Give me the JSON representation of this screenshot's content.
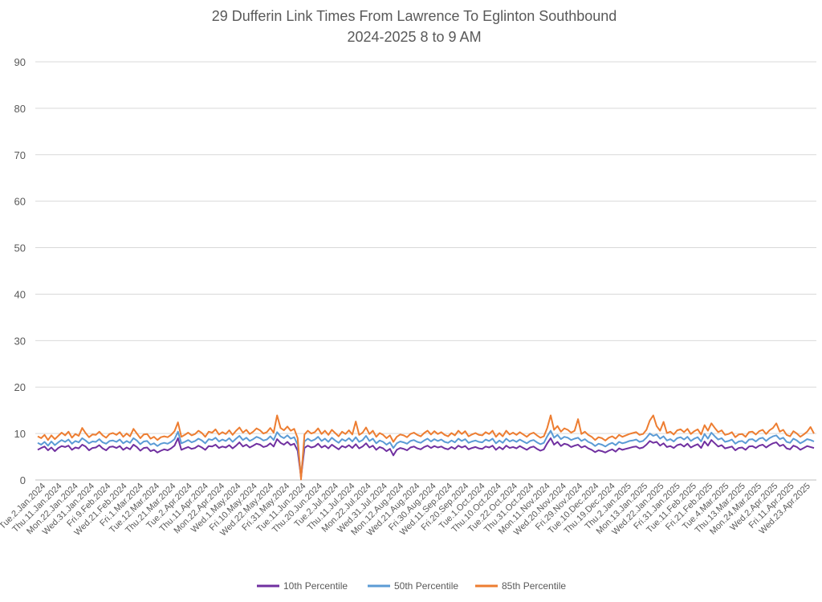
{
  "chart_data": {
    "type": "line",
    "title": "29 Dufferin Link Times From Lawrence To Eglinton Southbound",
    "subtitle": "2024-2025 8 to 9 AM",
    "xlabel": "",
    "ylabel": "",
    "ylim": [
      0,
      90
    ],
    "yticks": [
      0,
      10,
      20,
      30,
      40,
      50,
      60,
      70,
      80,
      90
    ],
    "grid": true,
    "legend_position": "bottom",
    "x_tick_labels": [
      "Tue.2.Jan.2024",
      "Thu.11.Jan.2024",
      "Mon.22.Jan.2024",
      "Wed.31.Jan.2024",
      "Fri.9.Feb.2024",
      "Wed.21.Feb.2024",
      "Fri.1.Mar.2024",
      "Tue.12.Mar.2024",
      "Thu.21.Mar.2024",
      "Tue.2.Apr.2024",
      "Thu.11.Apr.2024",
      "Mon.22.Apr.2024",
      "Wed.1.May.2024",
      "Fri.10.May.2024",
      "Wed.22.May.2024",
      "Fri.31.May.2024",
      "Tue.11.Jun.2024",
      "Thu.20.Jun.2024",
      "Tue.2.Jul.2024",
      "Thu.11.Jul.2024",
      "Mon.22.Jul.2024",
      "Wed.31.Jul.2024",
      "Mon.12.Aug.2024",
      "Wed.21.Aug.2024",
      "Fri.30.Aug.2024",
      "Wed.11.Sep.2024",
      "Fri.20.Sep.2024",
      "Tue.1.Oct.2024",
      "Thu.10.Oct.2024",
      "Tue.22.Oct.2024",
      "Thu.31.Oct.2024",
      "Mon.11.Nov.2024",
      "Wed.20.Nov.2024",
      "Fri.29.Nov.2024",
      "Tue.10.Dec.2024",
      "Thu.19.Dec.2024",
      "Thu.2.Jan.2025",
      "Mon.13.Jan.2025",
      "Wed.22.Jan.2025",
      "Fri.31.Jan.2025",
      "Tue.11.Feb.2025",
      "Fri.21.Feb.2025",
      "Tue.4.Mar.2025",
      "Thu.13.Mar.2025",
      "Mon.24.Mar.2025",
      "Wed.2.Apr.2025",
      "Fri.11.Apr.2025",
      "Wed.23.Apr.2025"
    ],
    "series": [
      {
        "name": "10th Percentile",
        "color": "#7030a0",
        "values": [
          6.5,
          6.9,
          7.2,
          6.4,
          7.0,
          6.2,
          6.9,
          7.3,
          7.1,
          7.4,
          6.5,
          7.0,
          6.8,
          7.6,
          7.2,
          6.4,
          6.9,
          7.0,
          7.5,
          6.8,
          6.4,
          7.1,
          7.2,
          6.9,
          7.3,
          6.5,
          7.0,
          6.6,
          7.6,
          7.1,
          6.3,
          6.9,
          7.0,
          6.2,
          6.5,
          5.9,
          6.3,
          6.6,
          6.4,
          6.8,
          7.4,
          9.0,
          6.5,
          6.8,
          7.1,
          6.7,
          6.9,
          7.4,
          7.0,
          6.5,
          7.3,
          7.2,
          7.6,
          6.9,
          7.2,
          7.0,
          7.5,
          6.8,
          7.4,
          8.1,
          7.2,
          7.6,
          7.0,
          7.4,
          7.8,
          7.6,
          7.1,
          7.3,
          7.9,
          7.2,
          8.8,
          8.0,
          7.6,
          8.2,
          7.5,
          7.8,
          6.3,
          0.6,
          6.9,
          7.4,
          7.0,
          7.2,
          7.8,
          7.0,
          7.4,
          6.8,
          7.6,
          7.1,
          6.6,
          7.3,
          7.0,
          7.5,
          6.9,
          7.7,
          6.8,
          7.2,
          7.9,
          7.0,
          7.4,
          6.5,
          7.1,
          6.8,
          6.2,
          6.7,
          5.3,
          6.5,
          6.9,
          6.7,
          6.4,
          7.0,
          7.2,
          6.8,
          6.6,
          7.1,
          7.4,
          6.9,
          7.3,
          7.0,
          7.2,
          6.8,
          6.6,
          7.1,
          6.7,
          7.4,
          7.0,
          7.3,
          6.6,
          6.9,
          7.1,
          6.8,
          6.7,
          7.2,
          7.0,
          7.4,
          6.5,
          7.1,
          6.6,
          7.4,
          6.9,
          7.1,
          6.8,
          7.3,
          6.9,
          6.5,
          7.0,
          7.2,
          6.7,
          6.3,
          6.6,
          7.9,
          9.0,
          7.6,
          8.2,
          7.3,
          7.8,
          7.6,
          7.1,
          7.4,
          7.6,
          7.0,
          7.3,
          6.8,
          6.5,
          6.0,
          6.4,
          6.2,
          5.9,
          6.3,
          6.6,
          6.1,
          6.8,
          6.5,
          6.7,
          6.9,
          7.1,
          7.2,
          6.8,
          7.0,
          7.6,
          8.4,
          8.0,
          8.2,
          7.4,
          7.9,
          7.1,
          7.3,
          6.9,
          7.5,
          7.7,
          7.2,
          7.8,
          7.0,
          7.4,
          7.7,
          6.9,
          8.3,
          7.4,
          8.6,
          7.9,
          7.2,
          7.5,
          6.8,
          7.0,
          7.2,
          6.4,
          6.9,
          7.0,
          6.5,
          7.2,
          7.3,
          6.9,
          7.4,
          7.6,
          7.0,
          7.5,
          7.9,
          8.1,
          7.3,
          7.6,
          6.8,
          6.6,
          7.4,
          7.1,
          6.5,
          6.9,
          7.3,
          7.1,
          6.9
        ]
      },
      {
        "name": "50th Percentile",
        "color": "#5b9bd5",
        "values": [
          8.0,
          7.6,
          8.2,
          7.4,
          8.3,
          7.5,
          8.1,
          8.6,
          8.2,
          8.7,
          7.8,
          8.4,
          8.1,
          9.0,
          8.5,
          7.9,
          8.3,
          8.2,
          8.8,
          8.1,
          7.8,
          8.4,
          8.5,
          8.2,
          8.7,
          7.9,
          8.4,
          8.0,
          9.0,
          8.5,
          7.7,
          8.3,
          8.4,
          7.6,
          7.9,
          7.3,
          7.8,
          8.0,
          7.8,
          8.2,
          8.8,
          10.4,
          7.9,
          8.2,
          8.6,
          8.1,
          8.4,
          8.9,
          8.5,
          7.9,
          8.8,
          8.6,
          9.1,
          8.3,
          8.7,
          8.4,
          9.0,
          8.2,
          8.9,
          9.5,
          8.6,
          9.1,
          8.4,
          8.8,
          9.3,
          9.0,
          8.5,
          8.7,
          9.4,
          8.6,
          10.3,
          9.4,
          9.0,
          9.6,
          8.9,
          9.2,
          7.6,
          0.8,
          8.3,
          8.9,
          8.4,
          8.7,
          9.3,
          8.4,
          8.9,
          8.2,
          9.1,
          8.5,
          8.0,
          8.8,
          8.4,
          9.0,
          8.3,
          9.2,
          8.2,
          8.6,
          9.5,
          8.4,
          8.9,
          7.9,
          8.5,
          8.2,
          7.6,
          8.1,
          6.9,
          7.9,
          8.3,
          8.1,
          7.8,
          8.4,
          8.6,
          8.2,
          8.0,
          8.5,
          8.9,
          8.3,
          8.8,
          8.4,
          8.7,
          8.2,
          8.0,
          8.5,
          8.1,
          8.9,
          8.4,
          8.8,
          8.0,
          8.3,
          8.5,
          8.2,
          8.1,
          8.7,
          8.4,
          8.9,
          7.9,
          8.5,
          8.0,
          8.9,
          8.3,
          8.6,
          8.2,
          8.7,
          8.3,
          7.9,
          8.4,
          8.6,
          8.1,
          7.7,
          8.0,
          9.4,
          10.6,
          9.1,
          9.7,
          8.8,
          9.3,
          9.1,
          8.6,
          8.9,
          9.1,
          8.4,
          8.8,
          8.2,
          7.9,
          7.3,
          7.8,
          7.6,
          7.2,
          7.7,
          8.0,
          7.5,
          8.2,
          7.9,
          8.1,
          8.4,
          8.5,
          8.7,
          8.2,
          8.4,
          9.1,
          10.0,
          9.5,
          9.8,
          8.9,
          9.4,
          8.5,
          8.8,
          8.3,
          9.0,
          9.2,
          8.7,
          9.3,
          8.4,
          8.9,
          9.2,
          8.3,
          9.9,
          8.9,
          10.2,
          9.4,
          8.7,
          9.0,
          8.2,
          8.4,
          8.7,
          7.8,
          8.3,
          8.4,
          7.9,
          8.7,
          8.8,
          8.3,
          8.9,
          9.1,
          8.4,
          9.0,
          9.4,
          9.6,
          8.8,
          9.1,
          8.2,
          8.0,
          8.9,
          8.5,
          7.9,
          8.3,
          8.8,
          8.6,
          8.3
        ]
      },
      {
        "name": "85th Percentile",
        "color": "#ed7d31",
        "values": [
          9.4,
          9.0,
          9.7,
          8.6,
          9.6,
          8.8,
          9.5,
          10.2,
          9.6,
          10.4,
          9.1,
          9.9,
          9.5,
          11.2,
          10.1,
          9.2,
          9.8,
          9.7,
          10.4,
          9.6,
          9.1,
          9.9,
          10.1,
          9.7,
          10.3,
          9.3,
          10.0,
          9.4,
          11.0,
          10.0,
          9.0,
          9.8,
          9.9,
          8.9,
          9.3,
          8.6,
          9.2,
          9.4,
          9.2,
          9.7,
          10.5,
          12.4,
          9.3,
          9.7,
          10.2,
          9.6,
          9.9,
          10.6,
          10.1,
          9.3,
          10.4,
          10.2,
          10.9,
          9.8,
          10.3,
          9.9,
          10.7,
          9.7,
          10.6,
          11.3,
          10.2,
          10.8,
          9.9,
          10.4,
          11.1,
          10.7,
          10.0,
          10.3,
          11.2,
          10.2,
          13.9,
          11.2,
          10.7,
          11.5,
          10.6,
          11.0,
          9.0,
          0.1,
          9.8,
          10.6,
          10.0,
          10.3,
          11.1,
          9.9,
          10.6,
          9.7,
          10.8,
          10.1,
          9.4,
          10.4,
          9.9,
          10.7,
          9.8,
          12.6,
          9.7,
          10.2,
          11.3,
          9.9,
          10.6,
          9.3,
          10.1,
          9.7,
          9.0,
          9.6,
          8.2,
          9.3,
          9.8,
          9.6,
          9.2,
          9.9,
          10.2,
          9.7,
          9.4,
          10.1,
          10.6,
          9.8,
          10.5,
          9.9,
          10.3,
          9.7,
          9.4,
          10.1,
          9.6,
          10.6,
          9.9,
          10.5,
          9.4,
          9.8,
          10.1,
          9.7,
          9.6,
          10.3,
          9.9,
          10.6,
          9.3,
          10.1,
          9.4,
          10.6,
          9.8,
          10.2,
          9.7,
          10.3,
          9.8,
          9.3,
          9.9,
          10.2,
          9.6,
          9.1,
          9.4,
          11.2,
          13.9,
          10.8,
          11.6,
          10.4,
          11.1,
          10.8,
          10.2,
          10.6,
          13.1,
          9.9,
          10.4,
          9.7,
          9.3,
          8.6,
          9.2,
          9.0,
          8.5,
          9.1,
          9.4,
          8.9,
          9.7,
          9.3,
          9.6,
          9.9,
          10.1,
          10.3,
          9.7,
          9.9,
          10.8,
          12.8,
          13.9,
          11.6,
          10.6,
          12.5,
          10.1,
          10.4,
          9.8,
          10.7,
          10.9,
          10.3,
          11.0,
          9.9,
          10.5,
          10.9,
          9.8,
          11.8,
          10.6,
          12.2,
          11.2,
          10.3,
          10.7,
          9.7,
          9.9,
          10.3,
          9.2,
          9.8,
          9.9,
          9.3,
          10.3,
          10.4,
          9.8,
          10.5,
          10.8,
          9.9,
          10.7,
          11.2,
          12.2,
          10.4,
          10.8,
          9.7,
          9.4,
          10.5,
          10.0,
          9.3,
          9.8,
          10.4,
          11.4,
          10.0
        ]
      }
    ]
  }
}
